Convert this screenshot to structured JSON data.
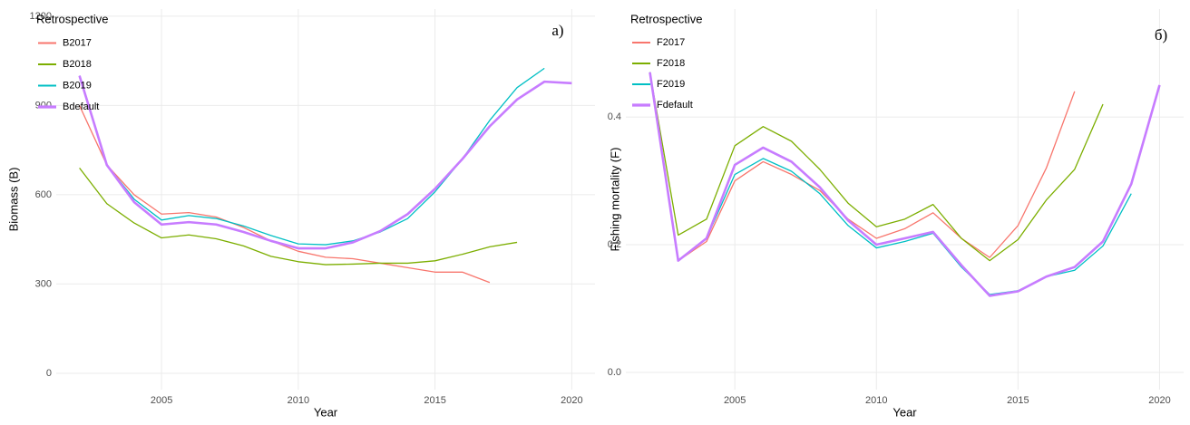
{
  "chart_data": [
    {
      "type": "line",
      "title": "a)",
      "x_label": "Year",
      "y_label": "Biomass (B)",
      "legend_title": "Retrospective",
      "x": [
        2002,
        2003,
        2004,
        2005,
        2006,
        2007,
        2008,
        2009,
        2010,
        2011,
        2012,
        2013,
        2014,
        2015,
        2016,
        2017,
        2018,
        2019,
        2020
      ],
      "xlim": [
        2001.15,
        2020.85
      ],
      "xticks": [
        2005,
        2010,
        2015,
        2020
      ],
      "ylim": [
        -55,
        1224
      ],
      "yticks": [
        0,
        300,
        600,
        900,
        1200
      ],
      "grid": true,
      "series": [
        {
          "name": "B2017",
          "color": "#F8766D",
          "width": 1.3,
          "values": [
            900,
            700,
            600,
            535,
            540,
            525,
            490,
            445,
            410,
            390,
            385,
            370,
            355,
            340,
            340,
            305,
            null,
            null,
            null
          ]
        },
        {
          "name": "B2018",
          "color": "#7CAE00",
          "width": 1.3,
          "values": [
            690,
            570,
            505,
            455,
            465,
            452,
            428,
            393,
            375,
            365,
            367,
            370,
            370,
            378,
            400,
            425,
            440,
            null,
            null
          ]
        },
        {
          "name": "B2019",
          "color": "#00BFC4",
          "width": 1.3,
          "values": [
            1000,
            700,
            585,
            515,
            530,
            520,
            495,
            463,
            435,
            432,
            445,
            475,
            520,
            610,
            720,
            850,
            960,
            1025,
            null
          ]
        },
        {
          "name": "Bdefault",
          "color": "#C77CFF",
          "width": 2.6,
          "values": [
            1000,
            700,
            575,
            500,
            508,
            500,
            475,
            445,
            420,
            420,
            440,
            478,
            535,
            620,
            720,
            830,
            920,
            980,
            975
          ]
        }
      ]
    },
    {
      "type": "line",
      "title": "б)",
      "x_label": "Year",
      "y_label": "Fishing mortality (F)",
      "legend_title": "Retrospective",
      "x": [
        2002,
        2003,
        2004,
        2005,
        2006,
        2007,
        2008,
        2009,
        2010,
        2011,
        2012,
        2013,
        2014,
        2015,
        2016,
        2017,
        2018,
        2019,
        2020
      ],
      "xlim": [
        2001.15,
        2020.85
      ],
      "xticks": [
        2005,
        2010,
        2015,
        2020
      ],
      "ylim": [
        -0.027,
        0.569
      ],
      "yticks": [
        {
          "value": 0,
          "label": "0.0"
        },
        0.2,
        0.4
      ],
      "grid": true,
      "series": [
        {
          "name": "F2017",
          "color": "#F8766D",
          "width": 1.3,
          "values": [
            0.47,
            0.175,
            0.205,
            0.3,
            0.33,
            0.31,
            0.285,
            0.24,
            0.21,
            0.225,
            0.25,
            0.21,
            0.18,
            0.23,
            0.32,
            0.44,
            null,
            null,
            null
          ]
        },
        {
          "name": "F2018",
          "color": "#7CAE00",
          "width": 1.3,
          "values": [
            0.47,
            0.215,
            0.24,
            0.355,
            0.385,
            0.362,
            0.318,
            0.265,
            0.228,
            0.24,
            0.263,
            0.21,
            0.175,
            0.208,
            0.27,
            0.318,
            0.42,
            null,
            null
          ]
        },
        {
          "name": "F2019",
          "color": "#00BFC4",
          "width": 1.3,
          "values": [
            0.47,
            0.175,
            0.21,
            0.31,
            0.335,
            0.315,
            0.28,
            0.23,
            0.195,
            0.205,
            0.218,
            0.165,
            0.122,
            0.128,
            0.15,
            0.16,
            0.198,
            0.28,
            null
          ]
        },
        {
          "name": "Fdefault",
          "color": "#C77CFF",
          "width": 2.6,
          "values": [
            0.47,
            0.175,
            0.21,
            0.325,
            0.352,
            0.33,
            0.29,
            0.238,
            0.2,
            0.21,
            0.22,
            0.168,
            0.12,
            0.127,
            0.15,
            0.165,
            0.205,
            0.295,
            0.45
          ]
        }
      ]
    }
  ]
}
